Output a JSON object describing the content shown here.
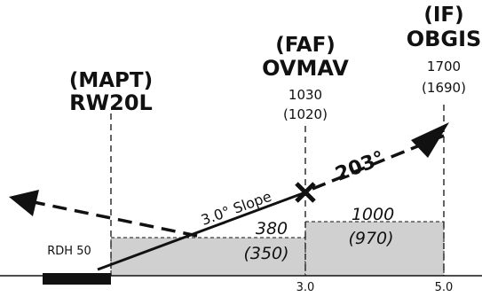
{
  "fixes": {
    "mapt": {
      "type": "(MAPT)",
      "name": "RW20L"
    },
    "faf": {
      "type": "(FAF)",
      "name": "OVMAV",
      "altitude": "1030",
      "altitude_alt": "(1020)"
    },
    "if": {
      "type": "(IF)",
      "name": "OBGIS",
      "altitude": "1700",
      "altitude_alt": "(1690)"
    }
  },
  "glide_path": {
    "slope_label": "3.0° Slope",
    "rdh_label": "RDH 50"
  },
  "course_label": "203°",
  "segment_altitudes": {
    "final": {
      "value": "380",
      "value_alt": "(350)"
    },
    "intermediate": {
      "value": "1000",
      "value_alt": "(970)"
    }
  },
  "distances": {
    "faf": "3.0",
    "if": "5.0"
  },
  "colors": {
    "ink": "#111111",
    "obstacle_box_fill": "#d0d0d0",
    "background": "#ffffff"
  }
}
